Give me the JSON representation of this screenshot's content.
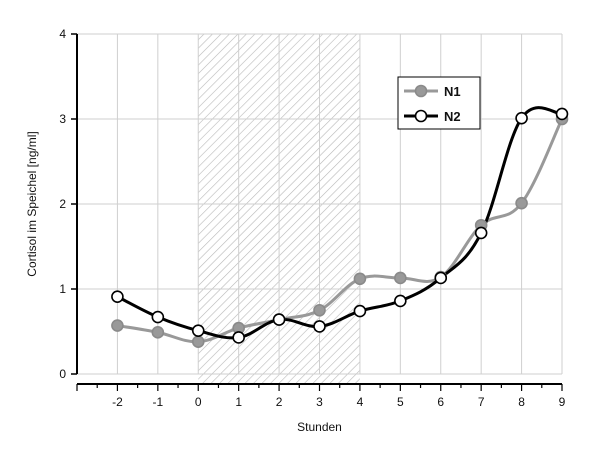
{
  "chart_data": {
    "type": "line",
    "title": "",
    "xlabel": "Stunden",
    "ylabel": "Cortisol im Speichel [ng/ml]",
    "x": [
      -2,
      -1,
      0,
      1,
      2,
      3,
      4,
      5,
      6,
      7,
      8,
      9
    ],
    "xlim": [
      -3,
      9
    ],
    "ylim": [
      0,
      4
    ],
    "xticks": [
      "-2",
      "-1",
      "0",
      "1",
      "2",
      "3",
      "4",
      "5",
      "6",
      "7",
      "8",
      "9"
    ],
    "yticks": [
      "0",
      "1",
      "2",
      "3",
      "4"
    ],
    "grid": true,
    "shaded_region": [
      0,
      4
    ],
    "legend_position": "top-right",
    "series": [
      {
        "name": "N1",
        "color": "#999999",
        "values": [
          0.57,
          0.49,
          0.38,
          0.54,
          0.64,
          0.75,
          1.12,
          1.13,
          1.14,
          1.75,
          2.01,
          3.0
        ]
      },
      {
        "name": "N2",
        "color": "#000000",
        "values": [
          0.91,
          0.67,
          0.51,
          0.43,
          0.64,
          0.56,
          0.74,
          0.86,
          1.13,
          1.66,
          3.01,
          3.06
        ]
      }
    ]
  }
}
